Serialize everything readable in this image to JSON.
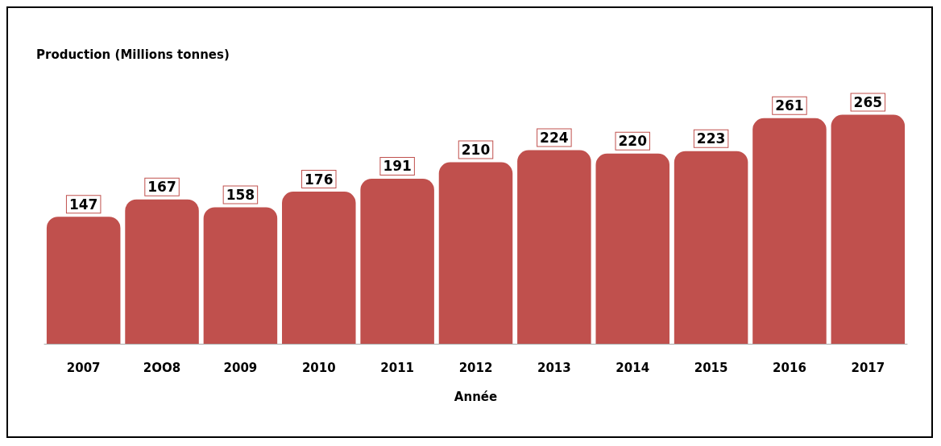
{
  "chart_data": {
    "type": "bar",
    "title": "Production (Millions tonnes)",
    "xlabel": "Année",
    "categories": [
      "2007",
      "2OO8",
      "2009",
      "2010",
      "2011",
      "2012",
      "2013",
      "2014",
      "2015",
      "2016",
      "2017"
    ],
    "values": [
      147,
      167,
      158,
      176,
      191,
      210,
      224,
      220,
      223,
      261,
      265
    ],
    "color": "#c0504d",
    "data_labels": true
  }
}
